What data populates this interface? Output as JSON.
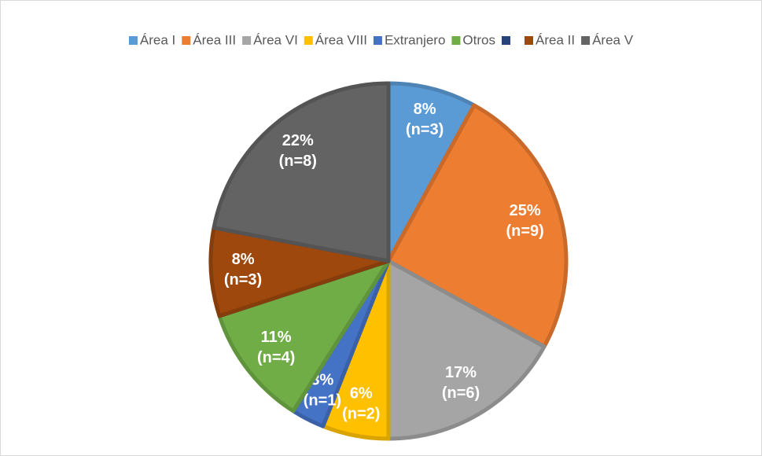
{
  "chart_data": {
    "type": "pie",
    "categories": [
      "Área I",
      "Área III",
      "Área VI",
      "Área VIII",
      "Extranjero",
      "Otros",
      null,
      "Área II",
      "Área V"
    ],
    "values": [
      8,
      25,
      17,
      6,
      3,
      11,
      0,
      8,
      22
    ],
    "value_labels": [
      "8%",
      "25%",
      "17%",
      "6%",
      "3%",
      "11%",
      null,
      "8%",
      "22%"
    ],
    "counts": [
      3,
      9,
      6,
      2,
      1,
      4,
      0,
      3,
      8
    ],
    "count_labels": [
      "(n=3)",
      "(n=9)",
      "(n=6)",
      "(n=2)",
      "(n=1)",
      "(n=4)",
      null,
      "(n=3)",
      "(n=8)"
    ],
    "colors": [
      "#5b9bd5",
      "#ed7d31",
      "#a5a5a5",
      "#ffc000",
      "#4472c4",
      "#70ad47",
      "#264478",
      "#9e480e",
      "#636363"
    ],
    "legend": "top"
  }
}
